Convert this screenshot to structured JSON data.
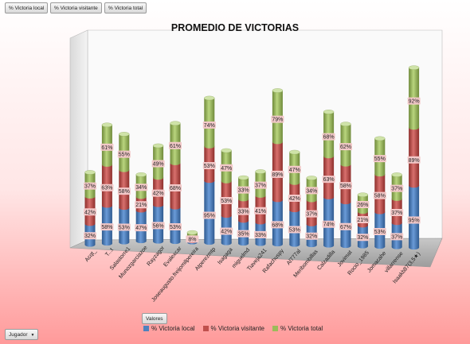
{
  "field_buttons": [
    "% Victoria local",
    "% Victoria visitante",
    "% Victoria total"
  ],
  "valores_label": "Valores",
  "jugador_label": "Jugador",
  "colors": {
    "local": "#4f81bd",
    "visitante": "#c0504d",
    "total": "#9bbb59"
  },
  "chart_data": {
    "type": "bar",
    "subtype": "3d-stacked-cylinder",
    "title": "PROMEDIO DE VICTORIAS",
    "categories": [
      "Acqt_",
      "T...t",
      "Salastorre1",
      "Munozgarciazoe",
      "Rayzagor",
      "Evalexcar",
      "Joseaugusto.freijomilpereira",
      "Atperezmtp",
      "Isagaga",
      "miguelmd",
      "Tiaveja241",
      "Rafachuspy",
      "Al777al",
      "Meribombillas",
      "Calzadilla",
      "Jovimat",
      "Rocio_1985",
      "Jomacahe",
      "villarrense",
      "Isaakb87(3,5★)"
    ],
    "series": [
      {
        "name": "% Victoria local",
        "values": [
          32,
          58,
          53,
          47,
          56,
          53,
          2,
          95,
          42,
          35,
          33,
          68,
          53,
          32,
          74,
          67,
          32,
          53,
          37,
          95
        ],
        "labels": [
          "32%",
          "58%",
          "53%",
          "47%",
          "56%",
          "53%",
          "",
          "95%",
          "42%",
          "35%",
          "33%",
          "68%",
          "53%",
          "32%",
          "74%",
          "67%",
          "32%",
          "53%",
          "37%",
          "95%"
        ]
      },
      {
        "name": "% Victoria visitante",
        "values": [
          42,
          63,
          58,
          21,
          42,
          68,
          8,
          53,
          53,
          33,
          41,
          89,
          42,
          37,
          63,
          58,
          21,
          58,
          37,
          89
        ],
        "labels": [
          "42%",
          "63%",
          "58%",
          "21%",
          "42%",
          "68%",
          "8%",
          "53%",
          "53%",
          "33%",
          "41%",
          "89%",
          "42%",
          "37%",
          "63%",
          "58%",
          "21%",
          "58%",
          "37%",
          "89%"
        ]
      },
      {
        "name": "% Victoria total",
        "values": [
          37,
          61,
          55,
          34,
          49,
          61,
          5,
          74,
          47,
          33,
          37,
          79,
          47,
          34,
          68,
          62,
          26,
          55,
          37,
          92
        ],
        "labels": [
          "37%",
          "61%",
          "55%",
          "34%",
          "49%",
          "61%",
          "",
          "74%",
          "47%",
          "33%",
          "37%",
          "79%",
          "47%",
          "34%",
          "68%",
          "62%",
          "26%",
          "55%",
          "37%",
          "92%"
        ]
      }
    ],
    "legend_position": "bottom",
    "grid": false
  }
}
